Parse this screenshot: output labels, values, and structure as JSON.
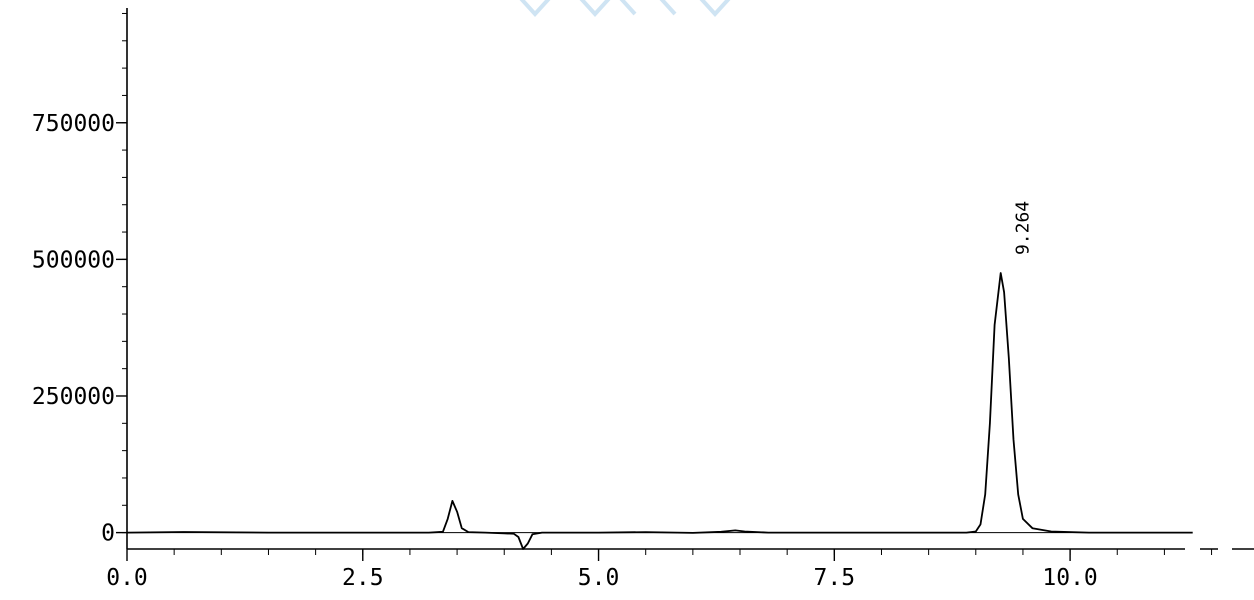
{
  "colors": {
    "trace": "#000000",
    "axis": "#000000",
    "watermark": "#cfe4f3"
  },
  "chart_data": {
    "type": "line",
    "title": "",
    "xlabel": "",
    "ylabel": "",
    "xlim": [
      0,
      11.95
    ],
    "ylim": [
      -30000,
      960000
    ],
    "x_ticks": [
      0.0,
      2.5,
      5.0,
      7.5,
      10.0
    ],
    "x_tick_labels": [
      "0.0",
      "2.5",
      "5.0",
      "7.5",
      "10.0"
    ],
    "x_minor_step": 0.5,
    "y_ticks": [
      0,
      250000,
      500000,
      750000
    ],
    "y_tick_labels": [
      "0",
      "250000",
      "500000",
      "750000"
    ],
    "y_minor_step": 50000,
    "grid": false,
    "baseline_y": 0,
    "series": [
      {
        "points": [
          [
            0.0,
            0
          ],
          [
            0.6,
            1200
          ],
          [
            1.5,
            0
          ],
          [
            2.5,
            0
          ],
          [
            3.2,
            0
          ],
          [
            3.35,
            1500
          ],
          [
            3.4,
            25000
          ],
          [
            3.45,
            58000
          ],
          [
            3.5,
            38000
          ],
          [
            3.55,
            8000
          ],
          [
            3.62,
            1000
          ],
          [
            3.8,
            0
          ],
          [
            4.0,
            -1500
          ],
          [
            4.1,
            -2000
          ],
          [
            4.15,
            -8000
          ],
          [
            4.2,
            -30000
          ],
          [
            4.25,
            -20000
          ],
          [
            4.3,
            -3000
          ],
          [
            4.4,
            0
          ],
          [
            5.0,
            0
          ],
          [
            5.5,
            1000
          ],
          [
            6.0,
            -500
          ],
          [
            6.3,
            1500
          ],
          [
            6.45,
            4000
          ],
          [
            6.55,
            2000
          ],
          [
            6.8,
            0
          ],
          [
            8.6,
            0
          ],
          [
            8.9,
            0
          ],
          [
            9.0,
            2000
          ],
          [
            9.05,
            15000
          ],
          [
            9.1,
            70000
          ],
          [
            9.15,
            200000
          ],
          [
            9.2,
            380000
          ],
          [
            9.264,
            475000
          ],
          [
            9.3,
            440000
          ],
          [
            9.35,
            320000
          ],
          [
            9.4,
            170000
          ],
          [
            9.45,
            70000
          ],
          [
            9.5,
            25000
          ],
          [
            9.6,
            8000
          ],
          [
            9.8,
            2000
          ],
          [
            10.2,
            0
          ],
          [
            10.75,
            0
          ],
          [
            11.3,
            0
          ]
        ]
      }
    ],
    "annotations": [
      {
        "text": "9.264",
        "x": 9.264,
        "y": 475000
      }
    ]
  }
}
